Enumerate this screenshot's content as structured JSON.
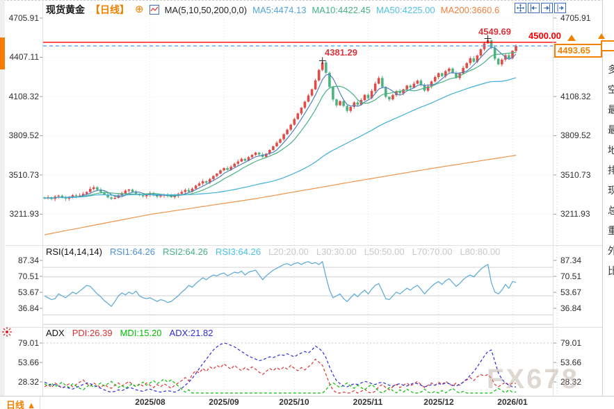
{
  "header": {
    "symbol": "现货黄金",
    "period": "【日线】",
    "ma_formula": "MA(5,10,50,200,0,0)",
    "ma_values": [
      {
        "label": "MA5:4474.13",
        "color": "#53a6dc"
      },
      {
        "label": "MA10:4422.45",
        "color": "#43b283"
      },
      {
        "label": "MA50:4225.00",
        "color": "#4fc2e7"
      },
      {
        "label": "MA200:3660.6",
        "color": "#f0813d"
      }
    ]
  },
  "toolbar": {
    "icons": [
      "crosshair",
      "scale-left",
      "scale-right",
      "goto-latest"
    ]
  },
  "axes": {
    "main_ticks": [
      "4705.91",
      "4407.11",
      "4108.32",
      "3809.52",
      "3510.73",
      "3211.93"
    ],
    "rsi_ticks": [
      "87.34",
      "70.51",
      "53.67",
      "36.84"
    ],
    "adx_ticks": [
      "79.01",
      "53.66",
      "28.32"
    ],
    "time_ticks": [
      "2025/08",
      "2025/09",
      "2025/10",
      "2025/11",
      "2025/12",
      "2026/01"
    ]
  },
  "rsi_header": {
    "title": "RSI(14,14,14)",
    "values": [
      {
        "label": "RSI1:64.26",
        "color": "#4a90d9"
      },
      {
        "label": "RSI2:64.26",
        "color": "#43b283"
      },
      {
        "label": "RSI3:64.26",
        "color": "#45c0e6"
      }
    ],
    "levels": [
      "L20:20.00",
      "L30:30.00",
      "L50:50.00",
      "L70:70.00",
      "L80:80.00"
    ]
  },
  "adx_header": {
    "title": "ADX",
    "values": [
      {
        "label": "PDI:26.39",
        "color": "#e03030"
      },
      {
        "label": "MDI:15.20",
        "color": "#00c000"
      },
      {
        "label": "ADX:21.82",
        "color": "#2c2cd8"
      }
    ]
  },
  "price_markers": {
    "alert_line": {
      "label": "4500.00",
      "value": 4500,
      "color": "#ff0000"
    },
    "last_price": {
      "label": "4493.65",
      "value": 4493.65,
      "color": "#f08200"
    },
    "peak_labels": [
      {
        "label": "4381.29",
        "value": 4381.29,
        "day": 79
      },
      {
        "label": "4549.69",
        "value": 4549.69,
        "day": 126
      }
    ]
  },
  "bottom_bar": {
    "period_label": "日线 ▲"
  },
  "watermark": "FX678",
  "right_strip": {
    "chars": [
      "多",
      "空",
      "最",
      "最",
      "地",
      "排",
      "现",
      "总",
      "重",
      "外",
      "比"
    ]
  },
  "chart_data": {
    "type": "candlestick",
    "title": "现货黄金 日线",
    "x_axis": {
      "month_labels": [
        "2025/08",
        "2025/09",
        "2025/10",
        "2025/11",
        "2025/12",
        "2026/01"
      ],
      "month_tick_days": [
        30,
        51,
        71,
        92,
        112,
        133
      ],
      "days": 135
    },
    "y_axis": {
      "ticks": [
        4705.91,
        4407.11,
        4108.32,
        3809.52,
        3510.73,
        3211.93
      ]
    },
    "panels": {
      "main": {
        "open_first": 3340,
        "up_color": "#e24b46",
        "down_color": "#4db381",
        "alert_line": 4500,
        "last_price": 4493.65,
        "peak_highs": {
          "79": 4381.29,
          "126": 4549.69
        },
        "closes": [
          3332,
          3341,
          3328,
          3346,
          3352,
          3338,
          3330,
          3343,
          3356,
          3349,
          3354,
          3366,
          3381,
          3404,
          3416,
          3398,
          3379,
          3361,
          3340,
          3329,
          3336,
          3353,
          3371,
          3391,
          3399,
          3383,
          3367,
          3356,
          3348,
          3361,
          3369,
          3356,
          3346,
          3353,
          3361,
          3349,
          3342,
          3351,
          3366,
          3381,
          3396,
          3383,
          3406,
          3429,
          3446,
          3463,
          3451,
          3479,
          3503,
          3521,
          3546,
          3563,
          3549,
          3573,
          3596,
          3613,
          3633,
          3619,
          3646,
          3663,
          3681,
          3666,
          3649,
          3673,
          3701,
          3729,
          3756,
          3783,
          3821,
          3856,
          3893,
          3936,
          3979,
          4023,
          4069,
          4116,
          4163,
          4231,
          4311,
          4368,
          4289,
          4181,
          4086,
          4041,
          4073,
          4036,
          3999,
          4029,
          4063,
          4046,
          4081,
          4121,
          4096,
          4151,
          4206,
          4249,
          4181,
          4106,
          4086,
          4119,
          4149,
          4133,
          4163,
          4191,
          4176,
          4206,
          4229,
          4196,
          4153,
          4186,
          4223,
          4256,
          4286,
          4263,
          4301,
          4321,
          4286,
          4249,
          4283,
          4326,
          4363,
          4399,
          4373,
          4421,
          4469,
          4513,
          4536,
          4481,
          4396,
          4353,
          4389,
          4423,
          4399,
          4456,
          4493.65
        ],
        "ma": {
          "ma5": {
            "window": 5,
            "color": "#4f81bd"
          },
          "ma10": {
            "window": 10,
            "color": "#46b183"
          },
          "ma50": {
            "window": 50,
            "color": "#3fb0d8"
          },
          "ma200": {
            "color": "#f0944a",
            "anchors": [
              [
                0,
                3055
              ],
              [
                30,
                3210
              ],
              [
                60,
                3330
              ],
              [
                90,
                3470
              ],
              [
                110,
                3560
              ],
              [
                134,
                3660.6
              ]
            ]
          }
        }
      },
      "rsi": {
        "color": "#57a8d8",
        "levels": [
          20,
          30,
          50,
          70,
          80
        ],
        "ticks": [
          87.34,
          70.51,
          53.67,
          36.84
        ],
        "values": [
          50,
          48,
          46,
          47,
          52,
          50,
          48,
          51,
          54,
          52,
          55,
          58,
          61,
          60,
          56,
          52,
          49,
          45,
          42,
          39,
          44,
          50,
          53,
          51,
          54,
          52,
          55,
          50,
          48,
          47,
          48,
          46,
          44,
          46,
          45,
          43,
          44,
          47,
          50,
          54,
          57,
          61,
          59,
          63,
          66,
          69,
          67,
          70,
          72,
          71,
          73,
          74,
          71,
          73,
          75,
          74,
          76,
          72,
          75,
          76,
          77,
          72,
          67,
          71,
          74,
          77,
          79,
          81,
          83,
          84,
          82,
          84,
          85,
          83,
          85,
          86,
          84,
          85,
          83,
          86,
          70,
          56,
          48,
          50,
          52,
          47,
          44,
          48,
          52,
          49,
          53,
          56,
          52,
          57,
          61,
          63,
          55,
          47,
          46,
          50,
          54,
          52,
          55,
          58,
          56,
          59,
          61,
          57,
          52,
          56,
          60,
          63,
          65,
          62,
          66,
          68,
          64,
          60,
          63,
          67,
          70,
          72,
          70,
          74,
          78,
          81,
          83,
          64,
          54,
          52,
          56,
          62,
          58,
          65,
          64.26
        ]
      },
      "adx": {
        "ticks": [
          79.01,
          53.66,
          28.32
        ],
        "top_level": 79.01,
        "series": [
          {
            "name": "PDI",
            "color": "#e03030",
            "values": [
              22,
              25,
              21,
              27,
              24,
              20,
              23,
              26,
              22,
              25,
              28,
              31,
              26,
              23,
              27,
              24,
              21,
              25,
              22,
              20,
              24,
              27,
              23,
              26,
              29,
              25,
              22,
              26,
              23,
              27,
              24,
              21,
              25,
              22,
              26,
              23,
              20,
              24,
              27,
              30,
              34,
              30,
              38,
              43,
              40,
              46,
              42,
              48,
              45,
              50,
              47,
              52,
              48,
              45,
              50,
              46,
              43,
              47,
              44,
              48,
              45,
              41,
              38,
              42,
              46,
              43,
              47,
              44,
              48,
              45,
              50,
              46,
              43,
              47,
              44,
              48,
              52,
              58,
              54,
              50,
              38,
              26,
              18,
              14,
              12,
              15,
              11,
              14,
              17,
              13,
              16,
              19,
              15,
              13,
              16,
              22,
              25,
              21,
              18,
              22,
              25,
              21,
              24,
              27,
              23,
              26,
              29,
              25,
              21,
              24,
              27,
              24,
              28,
              25,
              29,
              26,
              23,
              27,
              24,
              28,
              31,
              34,
              30,
              35,
              38,
              36,
              38,
              33,
              25,
              22,
              25,
              28,
              24,
              27,
              26.39
            ]
          },
          {
            "name": "MDI",
            "color": "#00c000",
            "values": [
              26,
              23,
              27,
              22,
              25,
              28,
              24,
              21,
              26,
              23,
              20,
              18,
              22,
              25,
              21,
              24,
              27,
              23,
              26,
              29,
              25,
              21,
              24,
              20,
              23,
              26,
              22,
              25,
              28,
              24,
              27,
              30,
              26,
              29,
              32,
              28,
              31,
              27,
              23,
              19,
              15,
              18,
              13,
              11,
              14,
              10,
              12,
              9,
              11,
              8,
              10,
              7,
              9,
              11,
              8,
              10,
              12,
              9,
              11,
              8,
              6,
              9,
              11,
              8,
              10,
              7,
              9,
              11,
              8,
              10,
              8,
              10,
              12,
              9,
              11,
              8,
              10,
              7,
              9,
              12,
              18,
              24,
              27,
              24,
              21,
              24,
              27,
              23,
              20,
              24,
              21,
              18,
              22,
              25,
              21,
              16,
              13,
              17,
              21,
              17,
              14,
              18,
              15,
              19,
              16,
              13,
              11,
              15,
              19,
              15,
              12,
              16,
              13,
              17,
              14,
              17,
              20,
              16,
              13,
              16,
              13,
              10,
              13,
              9,
              7,
              8,
              7,
              10,
              17,
              20,
              17,
              14,
              18,
              15,
              15.2
            ]
          },
          {
            "name": "ADX",
            "color": "#2c2cd8",
            "values": [
              28,
              26,
              24,
              25,
              23,
              21,
              22,
              20,
              19,
              21,
              23,
              25,
              27,
              26,
              24,
              22,
              20,
              18,
              16,
              15,
              16,
              18,
              17,
              19,
              21,
              20,
              18,
              17,
              16,
              18,
              19,
              17,
              16,
              15,
              16,
              17,
              16,
              15,
              17,
              20,
              24,
              28,
              33,
              39,
              46,
              52,
              58,
              64,
              70,
              74,
              77,
              79,
              78,
              76,
              74,
              71,
              68,
              65,
              62,
              60,
              58,
              56,
              57,
              59,
              61,
              60,
              62,
              64,
              63,
              65,
              63,
              61,
              64,
              66,
              68,
              66,
              70,
              75,
              72,
              68,
              60,
              48,
              38,
              30,
              26,
              23,
              22,
              24,
              26,
              25,
              27,
              29,
              28,
              26,
              25,
              27,
              28,
              26,
              24,
              23,
              25,
              26,
              24,
              23,
              25,
              27,
              26,
              24,
              22,
              23,
              25,
              24,
              26,
              25,
              27,
              26,
              24,
              23,
              25,
              28,
              32,
              37,
              42,
              48,
              55,
              62,
              68,
              70,
              55,
              40,
              32,
              27,
              24,
              22,
              21.82
            ]
          }
        ]
      }
    }
  }
}
